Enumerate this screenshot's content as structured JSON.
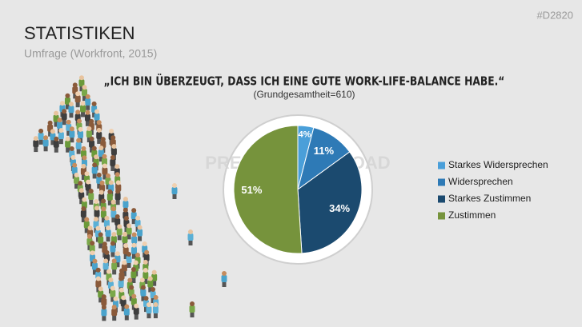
{
  "header": {
    "title": "STATISTIKEN",
    "subtitle": "Umfrage (Workfront, 2015)",
    "code": "#D2820",
    "watermark": "PRESENTATIONLOAD"
  },
  "chart_data": {
    "type": "pie",
    "title": "„ICH BIN ÜBERZEUGT, DASS ICH EINE GUTE WORK-LIFE-BALANCE HABE.“",
    "subtitle": "(Grundgesamtheit=610)",
    "categories": [
      "Starkes Widersprechen",
      "Widersprechen",
      "Starkes Zustimmen",
      "Zustimmen"
    ],
    "values": [
      4,
      11,
      34,
      51
    ],
    "value_labels": [
      "4%",
      "11%",
      "34%",
      "51%"
    ],
    "colors": [
      "#4a9fd9",
      "#2e7ab6",
      "#1b4a6f",
      "#76933c"
    ],
    "legend": "right"
  }
}
